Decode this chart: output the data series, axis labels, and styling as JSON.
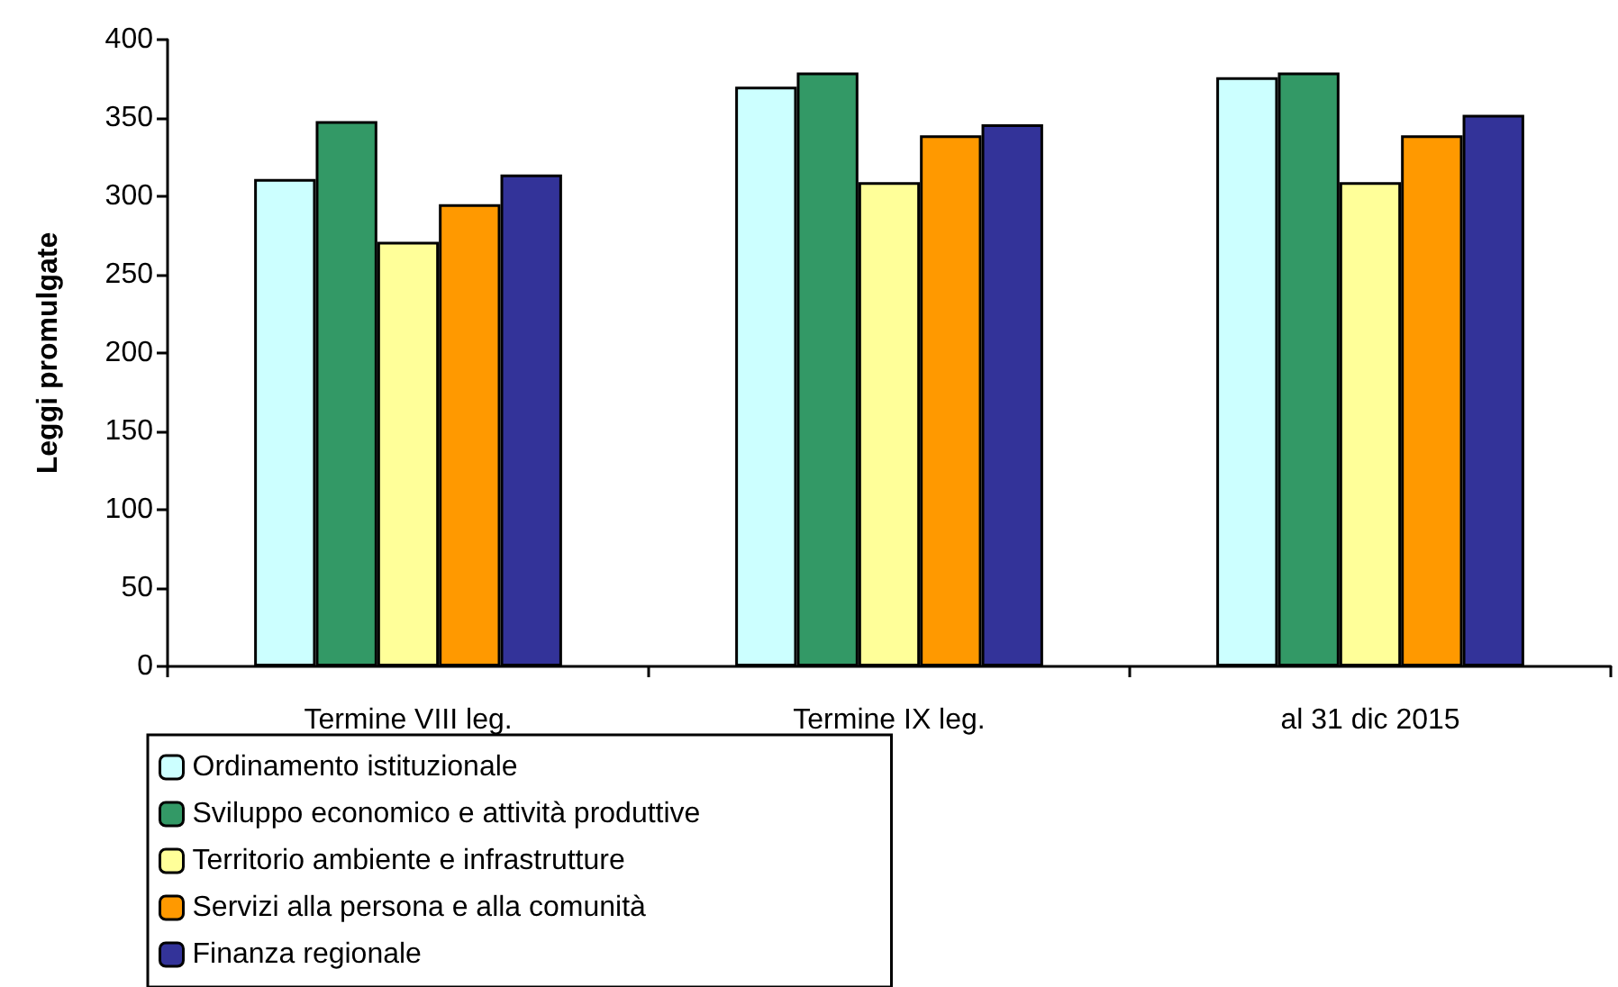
{
  "chart_data": {
    "type": "bar",
    "ylabel": "Leggi promulgate",
    "categories": [
      "Termine VIII leg.",
      "Termine IX leg.",
      "al 31 dic 2015"
    ],
    "series": [
      {
        "name": "Ordinamento istituzionale",
        "color": "#ccffff",
        "values": [
          311,
          370,
          376
        ]
      },
      {
        "name": "Sviluppo economico e attività produttive",
        "color": "#339966",
        "values": [
          348,
          379,
          379
        ]
      },
      {
        "name": "Territorio ambiente e infrastrutture",
        "color": "#ffff99",
        "values": [
          271,
          309,
          309
        ]
      },
      {
        "name": "Servizi alla persona e alla comunità",
        "color": "#ff9900",
        "values": [
          295,
          339,
          339
        ]
      },
      {
        "name": "Finanza regionale",
        "color": "#333399",
        "values": [
          314,
          346,
          352
        ]
      }
    ],
    "ylim": [
      0,
      400
    ],
    "yticks": [
      0,
      50,
      100,
      150,
      200,
      250,
      300,
      350,
      400
    ],
    "grid": false,
    "legend": "bottom"
  }
}
